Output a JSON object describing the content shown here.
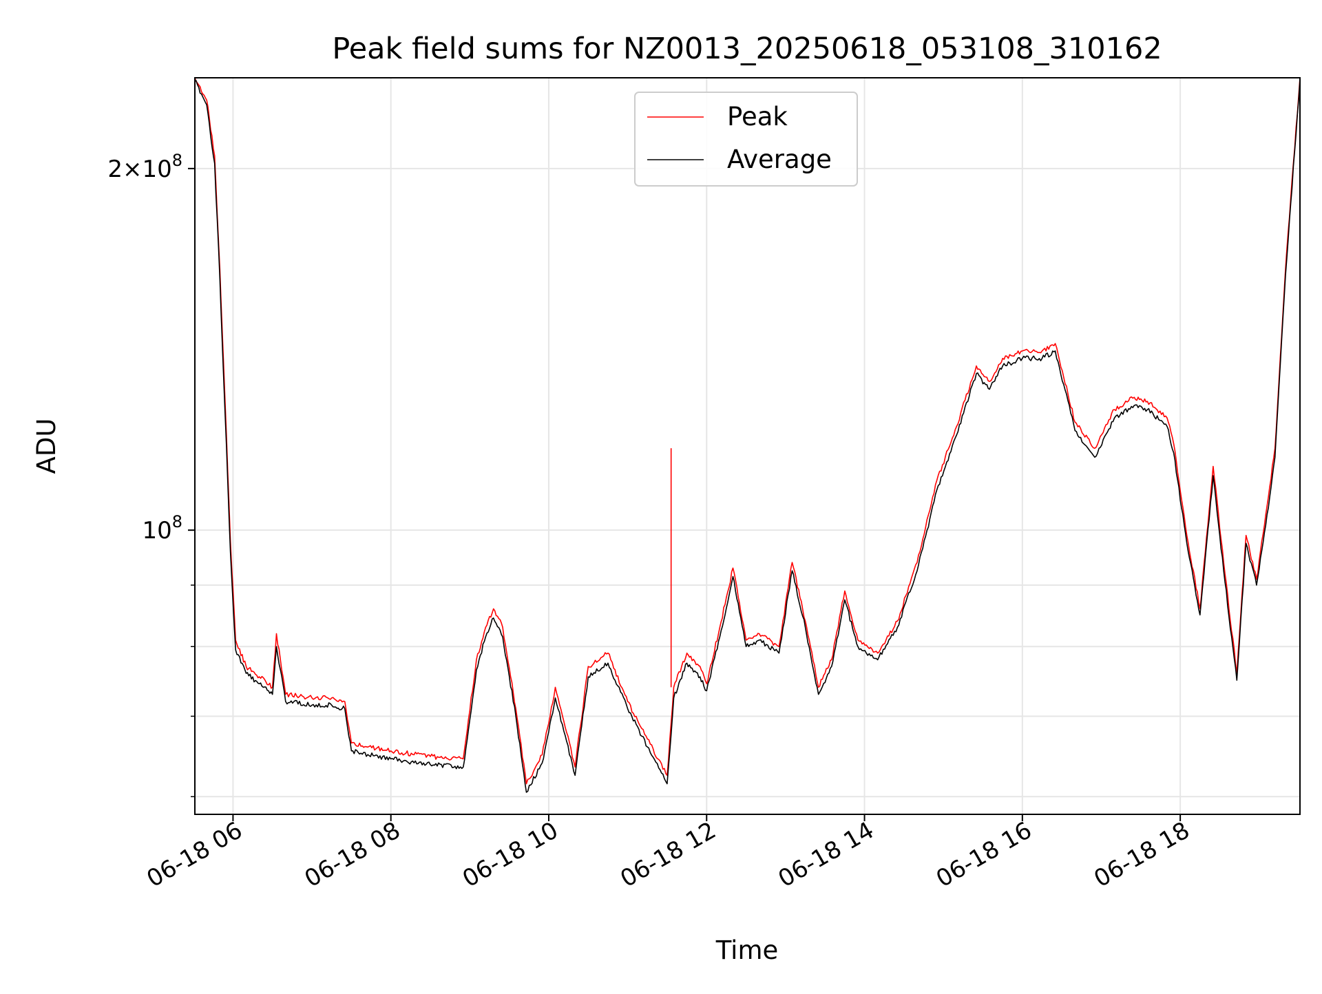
{
  "chart_data": {
    "type": "line",
    "title": "Peak field sums for NZ0013_20250618_053108_310162",
    "xlabel": "Time",
    "ylabel": "ADU",
    "x_axis": {
      "type": "datetime",
      "range": [
        "2025-06-18 05:31",
        "2025-06-18 19:31"
      ],
      "ticks": [
        "06-18 06",
        "06-18 08",
        "06-18 10",
        "06-18 12",
        "06-18 14",
        "06-18 16",
        "06-18 18"
      ],
      "tick_times": [
        "2025-06-18 06:00",
        "2025-06-18 08:00",
        "2025-06-18 10:00",
        "2025-06-18 12:00",
        "2025-06-18 14:00",
        "2025-06-18 16:00",
        "2025-06-18 18:00"
      ]
    },
    "y_axis": {
      "scale": "log",
      "range": [
        58000000,
        238000000
      ],
      "major_ticks": [
        100000000,
        200000000
      ],
      "major_tick_labels": [
        "10^8",
        "2×10^8"
      ],
      "minor_ticks": [
        60000000,
        70000000,
        80000000,
        90000000
      ]
    },
    "grid": true,
    "legend": {
      "placement": "upper center",
      "entries": [
        "Peak",
        "Average"
      ]
    },
    "series": [
      {
        "name": "Peak",
        "color": "#ff0000",
        "x": [
          "2025-06-18 05:31",
          "2025-06-18 05:40",
          "2025-06-18 05:46",
          "2025-06-18 05:50",
          "2025-06-18 05:54",
          "2025-06-18 05:58",
          "2025-06-18 06:02",
          "2025-06-18 06:10",
          "2025-06-18 06:20",
          "2025-06-18 06:30",
          "2025-06-18 06:33",
          "2025-06-18 06:40",
          "2025-06-18 07:00",
          "2025-06-18 07:15",
          "2025-06-18 07:25",
          "2025-06-18 07:30",
          "2025-06-18 08:00",
          "2025-06-18 08:30",
          "2025-06-18 08:55",
          "2025-06-18 09:05",
          "2025-06-18 09:12",
          "2025-06-18 09:18",
          "2025-06-18 09:25",
          "2025-06-18 09:35",
          "2025-06-18 09:43",
          "2025-06-18 09:55",
          "2025-06-18 10:05",
          "2025-06-18 10:20",
          "2025-06-18 10:30",
          "2025-06-18 10:45",
          "2025-06-18 11:00",
          "2025-06-18 11:15",
          "2025-06-18 11:30",
          "2025-06-18 11:35",
          "2025-06-18 11:45",
          "2025-06-18 11:55",
          "2025-06-18 12:00",
          "2025-06-18 12:10",
          "2025-06-18 12:20",
          "2025-06-18 12:30",
          "2025-06-18 12:40",
          "2025-06-18 12:55",
          "2025-06-18 13:05",
          "2025-06-18 13:15",
          "2025-06-18 13:25",
          "2025-06-18 13:35",
          "2025-06-18 13:45",
          "2025-06-18 13:55",
          "2025-06-18 14:10",
          "2025-06-18 14:25",
          "2025-06-18 14:40",
          "2025-06-18 14:55",
          "2025-06-18 15:10",
          "2025-06-18 15:25",
          "2025-06-18 15:35",
          "2025-06-18 15:45",
          "2025-06-18 16:00",
          "2025-06-18 16:15",
          "2025-06-18 16:25",
          "2025-06-18 16:40",
          "2025-06-18 16:55",
          "2025-06-18 17:10",
          "2025-06-18 17:25",
          "2025-06-18 17:35",
          "2025-06-18 17:50",
          "2025-06-18 17:55",
          "2025-06-18 18:05",
          "2025-06-18 18:15",
          "2025-06-18 18:25",
          "2025-06-18 18:33",
          "2025-06-18 18:43",
          "2025-06-18 18:50",
          "2025-06-18 18:58",
          "2025-06-18 19:05",
          "2025-06-18 19:12",
          "2025-06-18 19:20",
          "2025-06-18 19:31"
        ],
        "y": [
          238000000,
          228000000,
          205000000,
          165000000,
          128000000,
          98000000,
          81000000,
          77000000,
          75500000,
          74000000,
          82000000,
          73000000,
          72500000,
          72500000,
          72000000,
          66500000,
          65500000,
          64800000,
          64500000,
          78000000,
          83000000,
          86000000,
          83000000,
          71000000,
          61500000,
          65000000,
          74000000,
          63500000,
          77000000,
          79000000,
          72000000,
          67000000,
          62500000,
          74000000,
          79000000,
          77000000,
          74500000,
          83000000,
          93000000,
          81000000,
          82000000,
          80000000,
          94000000,
          84000000,
          74000000,
          78000000,
          89000000,
          81000000,
          79000000,
          84000000,
          94000000,
          110000000,
          122000000,
          137000000,
          133000000,
          139000000,
          141000000,
          141000000,
          143000000,
          123000000,
          117000000,
          126000000,
          129000000,
          128000000,
          124000000,
          118000000,
          99000000,
          86000000,
          113000000,
          94000000,
          76000000,
          99000000,
          91000000,
          103000000,
          117000000,
          165000000,
          238000000
        ]
      },
      {
        "name": "Average",
        "color": "#000000",
        "x": [
          "2025-06-18 05:31",
          "2025-06-18 05:40",
          "2025-06-18 05:46",
          "2025-06-18 05:50",
          "2025-06-18 05:54",
          "2025-06-18 05:58",
          "2025-06-18 06:02",
          "2025-06-18 06:10",
          "2025-06-18 06:20",
          "2025-06-18 06:30",
          "2025-06-18 06:33",
          "2025-06-18 06:40",
          "2025-06-18 07:00",
          "2025-06-18 07:15",
          "2025-06-18 07:25",
          "2025-06-18 07:30",
          "2025-06-18 08:00",
          "2025-06-18 08:30",
          "2025-06-18 08:55",
          "2025-06-18 09:05",
          "2025-06-18 09:12",
          "2025-06-18 09:18",
          "2025-06-18 09:25",
          "2025-06-18 09:35",
          "2025-06-18 09:43",
          "2025-06-18 09:55",
          "2025-06-18 10:05",
          "2025-06-18 10:20",
          "2025-06-18 10:30",
          "2025-06-18 10:45",
          "2025-06-18 11:00",
          "2025-06-18 11:15",
          "2025-06-18 11:30",
          "2025-06-18 11:35",
          "2025-06-18 11:45",
          "2025-06-18 11:55",
          "2025-06-18 12:00",
          "2025-06-18 12:10",
          "2025-06-18 12:20",
          "2025-06-18 12:30",
          "2025-06-18 12:40",
          "2025-06-18 12:55",
          "2025-06-18 13:05",
          "2025-06-18 13:15",
          "2025-06-18 13:25",
          "2025-06-18 13:35",
          "2025-06-18 13:45",
          "2025-06-18 13:55",
          "2025-06-18 14:10",
          "2025-06-18 14:25",
          "2025-06-18 14:40",
          "2025-06-18 14:55",
          "2025-06-18 15:10",
          "2025-06-18 15:25",
          "2025-06-18 15:35",
          "2025-06-18 15:45",
          "2025-06-18 16:00",
          "2025-06-18 16:15",
          "2025-06-18 16:25",
          "2025-06-18 16:40",
          "2025-06-18 16:55",
          "2025-06-18 17:10",
          "2025-06-18 17:25",
          "2025-06-18 17:35",
          "2025-06-18 17:50",
          "2025-06-18 17:55",
          "2025-06-18 18:05",
          "2025-06-18 18:15",
          "2025-06-18 18:25",
          "2025-06-18 18:33",
          "2025-06-18 18:43",
          "2025-06-18 18:50",
          "2025-06-18 18:58",
          "2025-06-18 19:05",
          "2025-06-18 19:12",
          "2025-06-18 19:20",
          "2025-06-18 19:31"
        ],
        "y": [
          237000000,
          226000000,
          202000000,
          162000000,
          125000000,
          96000000,
          79500000,
          76000000,
          74500000,
          73000000,
          80000000,
          72000000,
          71500000,
          71500000,
          71000000,
          65500000,
          64500000,
          63800000,
          63500000,
          76500000,
          81500000,
          84500000,
          81500000,
          70000000,
          60500000,
          64000000,
          72500000,
          62500000,
          75500000,
          77500000,
          71000000,
          66000000,
          61500000,
          72500000,
          77500000,
          75500000,
          73500000,
          81500000,
          91500000,
          80000000,
          81000000,
          79000000,
          92500000,
          83000000,
          73000000,
          77000000,
          87500000,
          80000000,
          78000000,
          83000000,
          92500000,
          108000000,
          120000000,
          135000000,
          131000000,
          137000000,
          139000000,
          139000000,
          141000000,
          121000000,
          115000000,
          124000000,
          127000000,
          126000000,
          122000000,
          116000000,
          97500000,
          85000000,
          111000000,
          92500000,
          75000000,
          97500000,
          90000000,
          101000000,
          115000000,
          163000000,
          237000000
        ]
      }
    ],
    "annotations": [
      {
        "type": "spike",
        "series": "Peak",
        "x": "2025-06-18 11:33",
        "y": 117000000
      }
    ]
  }
}
